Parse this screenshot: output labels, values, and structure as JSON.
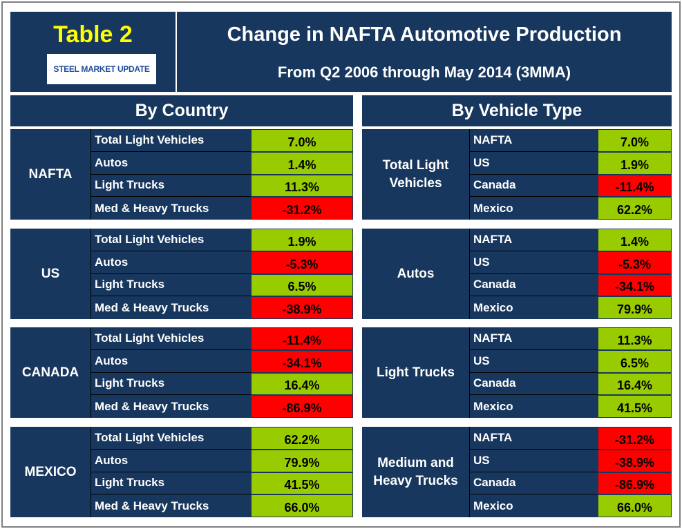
{
  "header": {
    "table_label": "Table 2",
    "logo": "STEEL MARKET UPDATE",
    "title": "Change in NAFTA Automotive Production",
    "subtitle": "From Q2 2006 through May 2014 (3MMA)"
  },
  "sections": [
    {
      "title": "By Country",
      "groups": [
        {
          "name": "NAFTA",
          "rows": [
            [
              "Total Light Vehicles",
              "7.0%"
            ],
            [
              "Autos",
              "1.4%"
            ],
            [
              "Light Trucks",
              "11.3%"
            ],
            [
              "Med & Heavy Trucks",
              "-31.2%"
            ]
          ]
        },
        {
          "name": "US",
          "rows": [
            [
              "Total Light Vehicles",
              "1.9%"
            ],
            [
              "Autos",
              "-5.3%"
            ],
            [
              "Light Trucks",
              "6.5%"
            ],
            [
              "Med & Heavy Trucks",
              "-38.9%"
            ]
          ]
        },
        {
          "name": "CANADA",
          "rows": [
            [
              "Total Light Vehicles",
              "-11.4%"
            ],
            [
              "Autos",
              "-34.1%"
            ],
            [
              "Light Trucks",
              "16.4%"
            ],
            [
              "Med & Heavy Trucks",
              "-86.9%"
            ]
          ]
        },
        {
          "name": "MEXICO",
          "rows": [
            [
              "Total Light Vehicles",
              "62.2%"
            ],
            [
              "Autos",
              "79.9%"
            ],
            [
              "Light Trucks",
              "41.5%"
            ],
            [
              "Med & Heavy Trucks",
              "66.0%"
            ]
          ]
        }
      ]
    },
    {
      "title": "By Vehicle Type",
      "groups": [
        {
          "name": "Total Light Vehicles",
          "rows": [
            [
              "NAFTA",
              "7.0%"
            ],
            [
              "US",
              "1.9%"
            ],
            [
              "Canada",
              "-11.4%"
            ],
            [
              "Mexico",
              "62.2%"
            ]
          ]
        },
        {
          "name": "Autos",
          "rows": [
            [
              "NAFTA",
              "1.4%"
            ],
            [
              "US",
              "-5.3%"
            ],
            [
              "Canada",
              "-34.1%"
            ],
            [
              "Mexico",
              "79.9%"
            ]
          ]
        },
        {
          "name": "Light Trucks",
          "rows": [
            [
              "NAFTA",
              "11.3%"
            ],
            [
              "US",
              "6.5%"
            ],
            [
              "Canada",
              "16.4%"
            ],
            [
              "Mexico",
              "41.5%"
            ]
          ]
        },
        {
          "name": "Medium and Heavy Trucks",
          "rows": [
            [
              "NAFTA",
              "-31.2%"
            ],
            [
              "US",
              "-38.9%"
            ],
            [
              "Canada",
              "-86.9%"
            ],
            [
              "Mexico",
              "66.0%"
            ]
          ]
        }
      ]
    }
  ],
  "colors": {
    "panel": "#17375e",
    "positive": "#99cc00",
    "negative": "#ff0000",
    "label_accent": "#ffff00"
  }
}
